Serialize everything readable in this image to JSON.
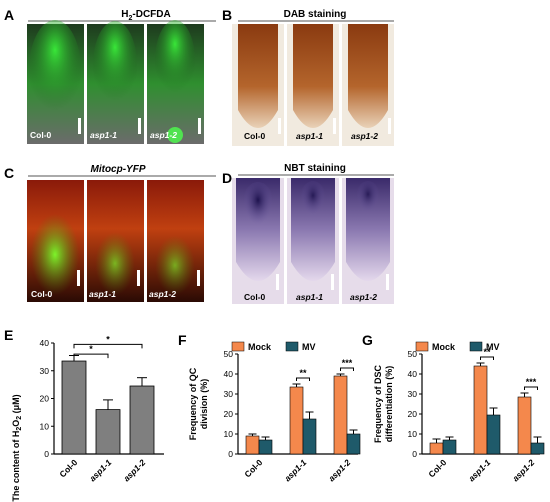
{
  "panels": {
    "A": {
      "letter": "A",
      "title_main": "H",
      "title_sub": "2",
      "title_rest": "-DCFDA",
      "labels": [
        "Col-0",
        "asp1-1",
        "asp1-2"
      ]
    },
    "B": {
      "letter": "B",
      "title": "DAB staining",
      "labels": [
        "Col-0",
        "asp1-1",
        "asp1-2"
      ]
    },
    "C": {
      "letter": "C",
      "title": "Mitocp-YFP",
      "labels": [
        "Col-0",
        "asp1-1",
        "asp1-2"
      ]
    },
    "D": {
      "letter": "D",
      "title": "NBT staining",
      "labels": [
        "Col-0",
        "asp1-1",
        "asp1-2"
      ]
    }
  },
  "chart_data": [
    {
      "letter": "E",
      "type": "bar",
      "ylabel_pre": "The content of H",
      "ylabel_sub": "2",
      "ylabel_mid": "O",
      "ylabel_sub2": "2",
      "ylabel_post": " (μM)",
      "categories": [
        "Col-0",
        "asp1-1",
        "asp1-2"
      ],
      "values": [
        33.5,
        16,
        24.5
      ],
      "errors": [
        2,
        3.5,
        3
      ],
      "ylim": [
        0,
        40
      ],
      "yticks": [
        0,
        10,
        20,
        30,
        40
      ],
      "significance": [
        {
          "from": 0,
          "to": 1,
          "label": "*"
        },
        {
          "from": 0,
          "to": 2,
          "label": "*"
        }
      ],
      "colors": {
        "bar": "#7f7f7f"
      }
    },
    {
      "letter": "F",
      "type": "bar",
      "ylabel_line1": "Frequency of QC",
      "ylabel_line2": "division (%)",
      "categories": [
        "Col-0",
        "asp1-1",
        "asp1-2"
      ],
      "series": [
        {
          "name": "Mock",
          "values": [
            9,
            33.5,
            39
          ],
          "errors": [
            1,
            1.5,
            1
          ]
        },
        {
          "name": "MV",
          "values": [
            7,
            17.5,
            10
          ],
          "errors": [
            1.5,
            3.5,
            2
          ]
        }
      ],
      "ylim": [
        0,
        50
      ],
      "yticks": [
        0,
        10,
        20,
        30,
        40,
        50
      ],
      "significance": [
        {
          "category": 1,
          "label": "**"
        },
        {
          "category": 2,
          "label": "***"
        }
      ],
      "colors": {
        "Mock": "#f4884c",
        "MV": "#1f5a6a"
      }
    },
    {
      "letter": "G",
      "type": "bar",
      "ylabel_line1": "Frequency of DSC",
      "ylabel_line2": "differentiation (%)",
      "categories": [
        "Col-0",
        "asp1-1",
        "asp1-2"
      ],
      "series": [
        {
          "name": "Mock",
          "values": [
            5.5,
            44,
            28.5
          ],
          "errors": [
            2,
            1.5,
            2
          ]
        },
        {
          "name": "MV",
          "values": [
            7,
            19.5,
            5.5
          ],
          "errors": [
            1.5,
            3.5,
            3
          ]
        }
      ],
      "ylim": [
        0,
        50
      ],
      "yticks": [
        0,
        10,
        20,
        30,
        40,
        50
      ],
      "significance": [
        {
          "category": 1,
          "label": "**"
        },
        {
          "category": 2,
          "label": "***"
        }
      ],
      "colors": {
        "Mock": "#f4884c",
        "MV": "#1f5a6a"
      }
    }
  ]
}
